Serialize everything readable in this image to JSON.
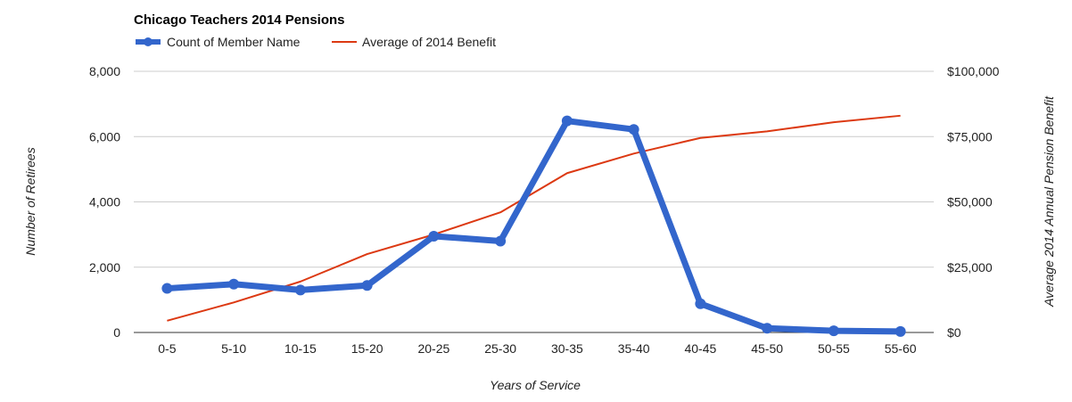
{
  "chart_data": {
    "type": "line",
    "title": "Chicago Teachers 2014 Pensions",
    "xlabel": "Years of Service",
    "ylabel": "Number of Retirees",
    "y2label": "Average 2014 Annual Pension Benefit",
    "categories": [
      "0-5",
      "5-10",
      "10-15",
      "15-20",
      "20-25",
      "25-30",
      "30-35",
      "35-40",
      "40-45",
      "45-50",
      "50-55",
      "55-60"
    ],
    "ylim": [
      0,
      8000
    ],
    "y2lim": [
      0,
      100000
    ],
    "yticks": [
      "0",
      "2,000",
      "4,000",
      "6,000",
      "8,000"
    ],
    "y2ticks": [
      "$0",
      "$25,000",
      "$50,000",
      "$75,000",
      "$100,000"
    ],
    "grid": true,
    "legend_position": "top-left",
    "series": [
      {
        "name": "Count of Member Name",
        "axis": "left",
        "color": "#3366cc",
        "values": [
          1350,
          1480,
          1300,
          1440,
          2950,
          2800,
          6480,
          6220,
          880,
          130,
          50,
          30
        ]
      },
      {
        "name": "Average of 2014 Benefit",
        "axis": "right",
        "color": "#dc3912",
        "values": [
          4500,
          11500,
          19500,
          30000,
          37500,
          46000,
          61000,
          68500,
          74500,
          77000,
          80500,
          83000
        ]
      }
    ]
  }
}
